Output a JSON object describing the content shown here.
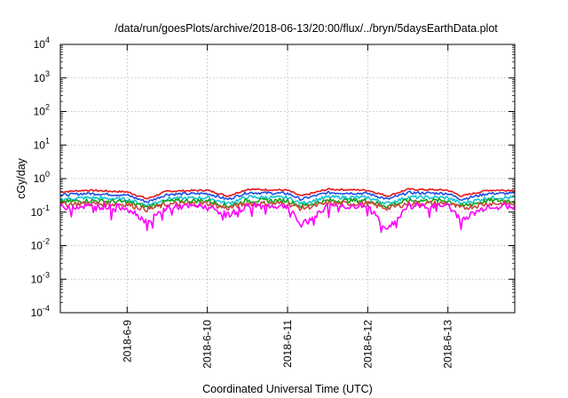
{
  "chart_data": {
    "type": "line",
    "title": "/data/run/goesPlots/archive/2018-06-13/20:00/flux/../bryn/5daysEarthData.plot",
    "xlabel": "Coordinated Universal Time (UTC)",
    "ylabel": "cGy/day",
    "yscale": "log",
    "ylim": [
      0.0001,
      10000
    ],
    "y_ticks": [
      {
        "base": "10",
        "exp": "-4",
        "value": 0.0001
      },
      {
        "base": "10",
        "exp": "-3",
        "value": 0.001
      },
      {
        "base": "10",
        "exp": "-2",
        "value": 0.01
      },
      {
        "base": "10",
        "exp": "-1",
        "value": 0.1
      },
      {
        "base": "10",
        "exp": "0",
        "value": 1
      },
      {
        "base": "10",
        "exp": "1",
        "value": 10
      },
      {
        "base": "10",
        "exp": "2",
        "value": 100
      },
      {
        "base": "10",
        "exp": "3",
        "value": 1000
      },
      {
        "base": "10",
        "exp": "4",
        "value": 10000
      }
    ],
    "xlim": [
      "2018-06-08 04:00",
      "2018-06-13 20:00"
    ],
    "x_ticks": [
      "2018-6-9",
      "2018-6-10",
      "2018-6-11",
      "2018-6-12",
      "2018-6-13"
    ],
    "grid": true,
    "legend": "none",
    "x": [
      "2018-06-08 04:00",
      "2018-06-08 12:00",
      "2018-06-09 00:00",
      "2018-06-09 06:00",
      "2018-06-09 12:00",
      "2018-06-10 00:00",
      "2018-06-10 06:00",
      "2018-06-10 12:00",
      "2018-06-11 00:00",
      "2018-06-11 04:00",
      "2018-06-11 12:00",
      "2018-06-12 00:00",
      "2018-06-12 06:00",
      "2018-06-12 12:00",
      "2018-06-13 00:00",
      "2018-06-13 04:00",
      "2018-06-13 12:00",
      "2018-06-13 20:00"
    ],
    "series": [
      {
        "color": "#e8161a",
        "values": [
          0.4,
          0.45,
          0.4,
          0.25,
          0.42,
          0.45,
          0.3,
          0.48,
          0.45,
          0.3,
          0.48,
          0.45,
          0.3,
          0.48,
          0.45,
          0.3,
          0.45,
          0.45
        ]
      },
      {
        "color": "#1d4fe6",
        "values": [
          0.32,
          0.36,
          0.32,
          0.2,
          0.34,
          0.36,
          0.24,
          0.38,
          0.36,
          0.24,
          0.38,
          0.36,
          0.24,
          0.38,
          0.36,
          0.24,
          0.36,
          0.36
        ]
      },
      {
        "color": "#11c5d4",
        "values": [
          0.24,
          0.27,
          0.24,
          0.16,
          0.25,
          0.27,
          0.18,
          0.28,
          0.27,
          0.18,
          0.28,
          0.27,
          0.18,
          0.28,
          0.27,
          0.18,
          0.27,
          0.27
        ]
      },
      {
        "color": "#13a31a",
        "values": [
          0.2,
          0.22,
          0.2,
          0.14,
          0.21,
          0.22,
          0.15,
          0.22,
          0.22,
          0.15,
          0.22,
          0.22,
          0.15,
          0.22,
          0.22,
          0.15,
          0.22,
          0.22
        ]
      },
      {
        "color": "#c9473f",
        "values": [
          0.17,
          0.18,
          0.17,
          0.12,
          0.17,
          0.18,
          0.13,
          0.18,
          0.18,
          0.13,
          0.18,
          0.18,
          0.13,
          0.18,
          0.18,
          0.13,
          0.18,
          0.18
        ]
      },
      {
        "color": "#ff00ff",
        "values": [
          0.14,
          0.15,
          0.14,
          0.05,
          0.14,
          0.15,
          0.08,
          0.15,
          0.15,
          0.04,
          0.15,
          0.15,
          0.03,
          0.15,
          0.15,
          0.06,
          0.15,
          0.15
        ]
      }
    ]
  }
}
